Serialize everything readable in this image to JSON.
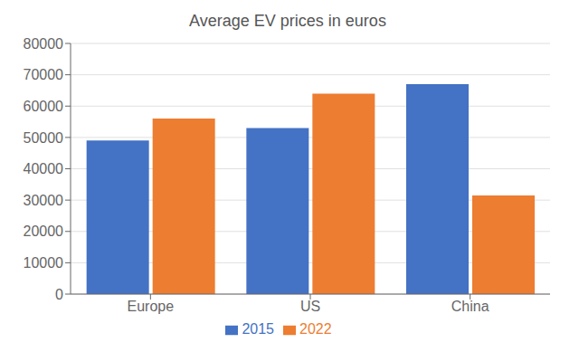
{
  "chart_data": {
    "type": "bar",
    "title": "Average EV prices in euros",
    "categories": [
      "Europe",
      "US",
      "China"
    ],
    "series": [
      {
        "name": "2015",
        "color": "#4472C4",
        "values": [
          49000,
          53000,
          67000
        ]
      },
      {
        "name": "2022",
        "color": "#ED7D31",
        "values": [
          56000,
          64000,
          31500
        ]
      }
    ],
    "ylim": [
      0,
      80000
    ],
    "yticks": [
      0,
      10000,
      20000,
      30000,
      40000,
      50000,
      60000,
      70000,
      80000
    ],
    "grid": true,
    "legend": "bottom"
  }
}
